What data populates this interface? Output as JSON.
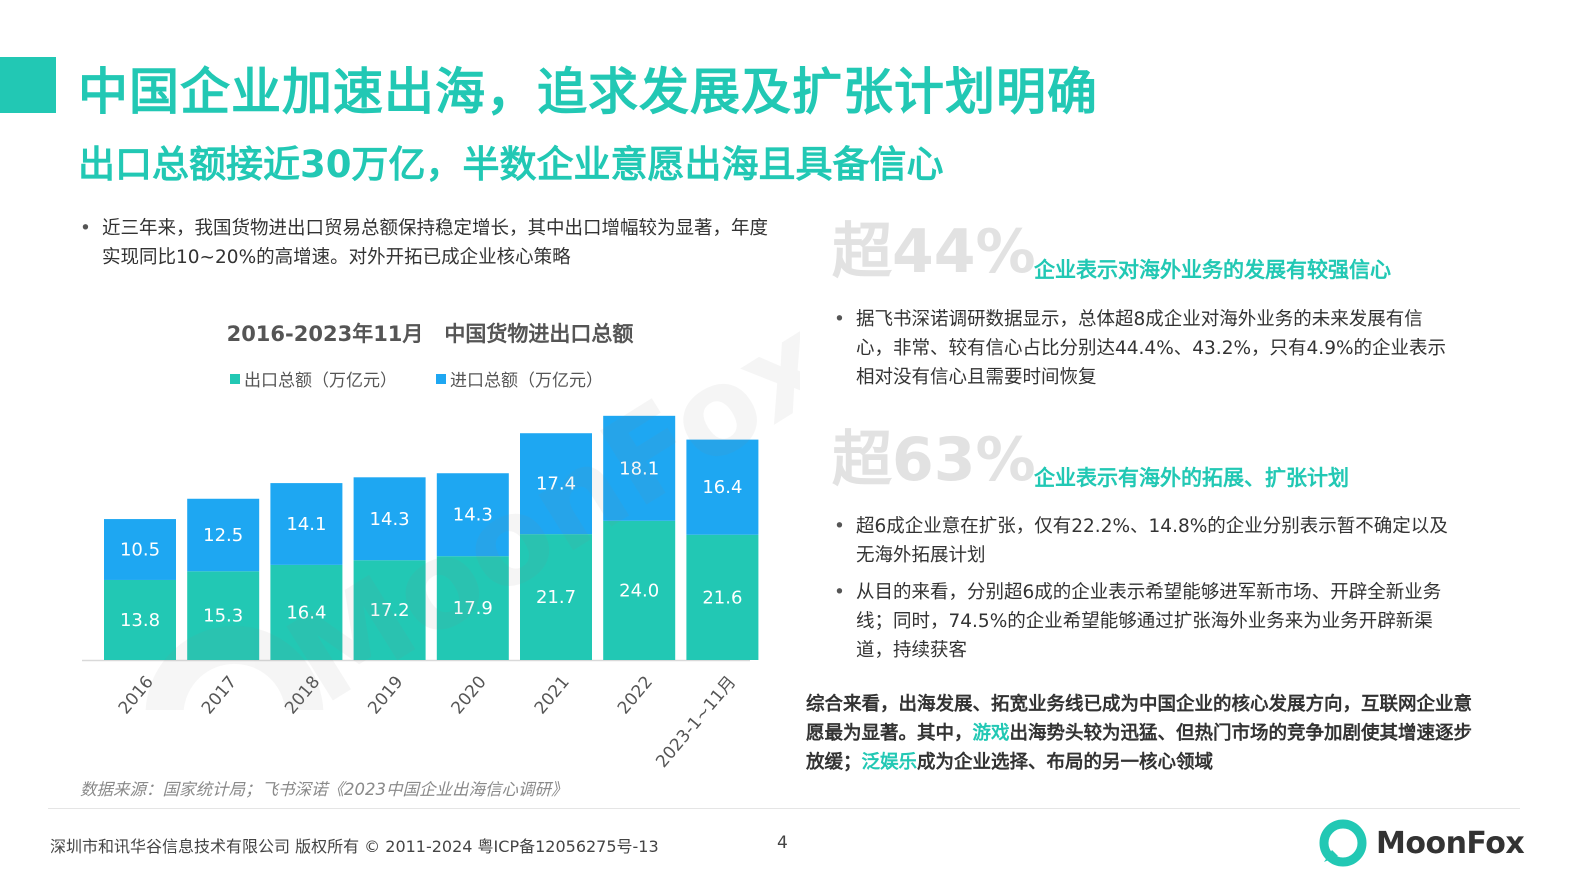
{
  "title": "中国企业加速出海，追求发展及扩张计划明确",
  "subtitle": "出口总额接近30万亿，半数企业意愿出海且具备信心",
  "left_bullet": "近三年来，我国货物进出口贸易总额保持稳定增长，其中出口增幅较为显著，年度实现同比10~20%的高增速。对外开拓已成企业核心策略",
  "chart_data": {
    "type": "bar",
    "stacked": true,
    "title": "2016-2023年11月　中国货物进出口总额",
    "categories": [
      "2016",
      "2017",
      "2018",
      "2019",
      "2020",
      "2021",
      "2022",
      "2023-1~11月"
    ],
    "series": [
      {
        "name": "出口总额（万亿元）",
        "color": "#22c8b4",
        "values": [
          13.8,
          15.3,
          16.4,
          17.2,
          17.9,
          21.7,
          24.0,
          21.6
        ]
      },
      {
        "name": "进口总额（万亿元）",
        "color": "#1ea7f2",
        "values": [
          10.5,
          12.5,
          14.1,
          14.3,
          14.3,
          17.4,
          18.1,
          16.4
        ]
      }
    ],
    "legend_position": "top",
    "grid": false
  },
  "source": "数据来源：国家统计局；飞书深诺《2023中国企业出海信心调研》",
  "stat1": {
    "number": "超44%",
    "label": "企业表示对海外业务的发展有较强信心",
    "bullets": [
      "据飞书深诺调研数据显示，总体超8成企业对海外业务的未来发展有信心，非常、较有信心占比分别达44.4%、43.2%，只有4.9%的企业表示相对没有信心且需要时间恢复"
    ]
  },
  "stat2": {
    "number": "超63%",
    "label": "企业表示有海外的拓展、扩张计划",
    "bullets": [
      "超6成企业意在扩张，仅有22.2%、14.8%的企业分别表示暂不确定以及无海外拓展计划",
      "从目的来看，分别超6成的企业表示希望能够进军新市场、开辟全新业务线；同时，74.5%的企业希望能够通过扩张海外业务来为业务开辟新渠道，持续获客"
    ]
  },
  "summary": {
    "part1": "综合来看，出海发展、拓宽业务线已成为中国企业的核心发展方向，互联网企业意愿最为显著。其中，",
    "hl1": "游戏",
    "part2": "出海势头较为迅猛、但热门市场的竞争加剧使其增速逐步放缓；",
    "hl2": "泛娱乐",
    "part3": "成为企业选择、布局的另一核心领域"
  },
  "footer": "深圳市和讯华谷信息技术有限公司 版权所有 © 2011-2024 粤ICP备12056275号-13",
  "page_number": "4",
  "watermark_text": "MoonFox",
  "logo_text": "MoonFox",
  "colors": {
    "accent": "#22c8b4",
    "import": "#1ea7f2"
  }
}
